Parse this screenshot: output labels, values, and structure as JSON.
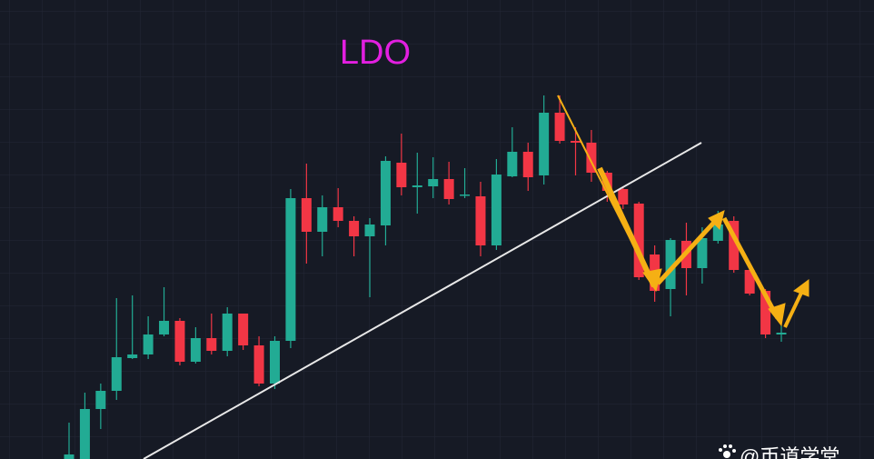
{
  "chart_data": {
    "type": "candlestick",
    "title": "LDO",
    "watermark": "@币道学堂",
    "categories": [
      null,
      null,
      null,
      null,
      null,
      null,
      null,
      null,
      null,
      null,
      null,
      null,
      null,
      null,
      null,
      null,
      null,
      null,
      null,
      null,
      null,
      null,
      null,
      null,
      null,
      null,
      null,
      null,
      null,
      null,
      null,
      null,
      null,
      null,
      null,
      null,
      null,
      null,
      null,
      null,
      null,
      null,
      null,
      null,
      null,
      null
    ],
    "open": [
      0,
      0,
      55,
      75,
      111,
      115,
      137,
      152,
      107,
      133,
      119,
      160,
      125,
      83,
      130,
      287,
      250,
      277,
      262,
      245,
      257,
      326,
      299,
      300,
      308,
      290,
      289,
      235,
      311,
      338,
      312,
      381,
      350,
      348,
      315,
      297,
      281,
      225,
      187,
      240,
      210,
      240,
      262,
      208,
      185,
      137
    ],
    "high": [
      40,
      73,
      83,
      177,
      180,
      157,
      189,
      155,
      145,
      160,
      167,
      160,
      135,
      135,
      297,
      325,
      290,
      298,
      267,
      265,
      333,
      358,
      337,
      332,
      327,
      320,
      305,
      330,
      365,
      348,
      400,
      400,
      365,
      362,
      317,
      300,
      283,
      235,
      243,
      260,
      255,
      273,
      267,
      210,
      187,
      147
    ],
    "low": [
      0,
      0,
      33,
      65,
      110,
      110,
      135,
      103,
      105,
      115,
      113,
      120,
      80,
      77,
      122,
      215,
      223,
      255,
      223,
      178,
      235,
      290,
      270,
      287,
      280,
      287,
      223,
      230,
      310,
      295,
      302,
      347,
      312,
      305,
      283,
      275,
      197,
      173,
      157,
      180,
      193,
      237,
      205,
      180,
      133,
      129
    ],
    "close": [
      5,
      55,
      75,
      112,
      115,
      137,
      152,
      107,
      133,
      119,
      160,
      125,
      83,
      130,
      287,
      250,
      277,
      262,
      245,
      258,
      328,
      299,
      301,
      308,
      286,
      291,
      235,
      313,
      338,
      310,
      381,
      350,
      348,
      315,
      295,
      280,
      200,
      185,
      241,
      210,
      243,
      258,
      208,
      182,
      137,
      139
    ],
    "up_color": "#22ab94",
    "down_color": "#f23645",
    "ylim": [
      0,
      505
    ]
  }
}
